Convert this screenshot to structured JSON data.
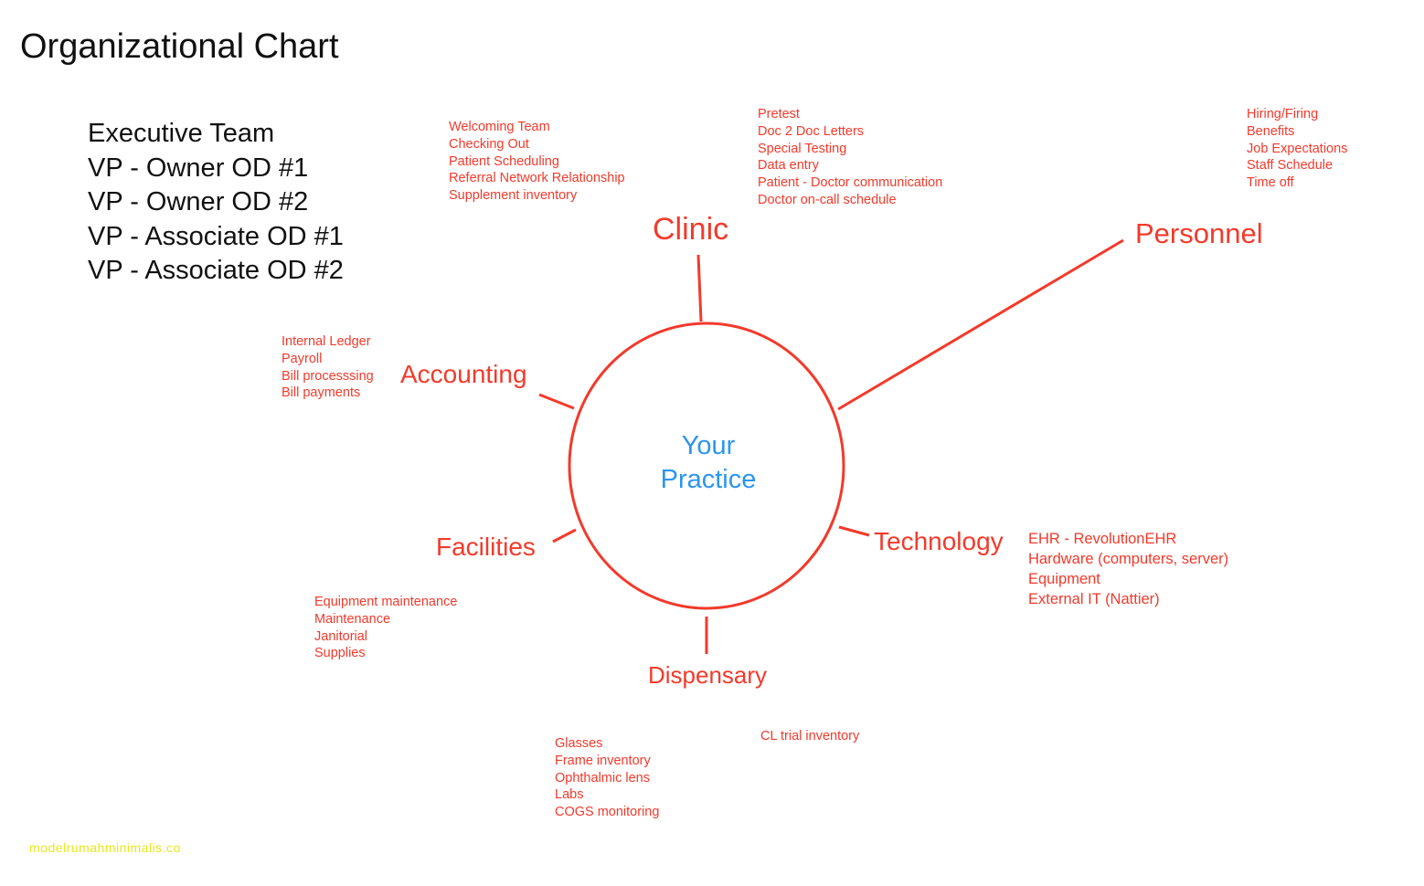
{
  "title": "Organizational Chart",
  "executive_team": [
    "Executive Team",
    "VP - Owner OD #1",
    "VP - Owner OD #2",
    "VP - Associate OD #1",
    "VP - Associate OD #2"
  ],
  "center": {
    "line1": "Your",
    "line2": "Practice"
  },
  "colors": {
    "department": "#f23a2b",
    "center": "#2b96ee",
    "watermark": "#e8e81a"
  },
  "departments": {
    "clinic": {
      "label": "Clinic",
      "items": [
        "Pretest",
        "Doc 2 Doc Letters",
        "Special Testing",
        "Data entry",
        "Patient - Doctor communication",
        "Doctor on-call schedule"
      ],
      "items2": [
        "Welcoming Team",
        "Checking Out",
        "Patient Scheduling",
        "Referral Network Relationship",
        "Supplement inventory"
      ]
    },
    "personnel": {
      "label": "Personnel",
      "items": [
        "Hiring/Firing",
        "Benefits",
        "Job Expectations",
        "Staff Schedule",
        "Time off"
      ]
    },
    "accounting": {
      "label": "Accounting",
      "items": [
        "Internal Ledger",
        "Payroll",
        "Bill processsing",
        "Bill payments"
      ]
    },
    "technology": {
      "label": "Technology",
      "items": [
        "EHR - RevolutionEHR",
        "Hardware (computers, server)",
        "Equipment",
        "External IT (Nattier)"
      ]
    },
    "facilities": {
      "label": "Facilities",
      "items": [
        "Equipment maintenance",
        "Maintenance",
        "Janitorial",
        "Supplies"
      ]
    },
    "dispensary": {
      "label": "Dispensary",
      "items": [
        "Glasses",
        "Frame inventory",
        "Ophthalmic lens",
        "Labs",
        "COGS monitoring"
      ],
      "items2": [
        "CL trial inventory"
      ]
    }
  },
  "watermark": "modelrumahminimalis.co"
}
